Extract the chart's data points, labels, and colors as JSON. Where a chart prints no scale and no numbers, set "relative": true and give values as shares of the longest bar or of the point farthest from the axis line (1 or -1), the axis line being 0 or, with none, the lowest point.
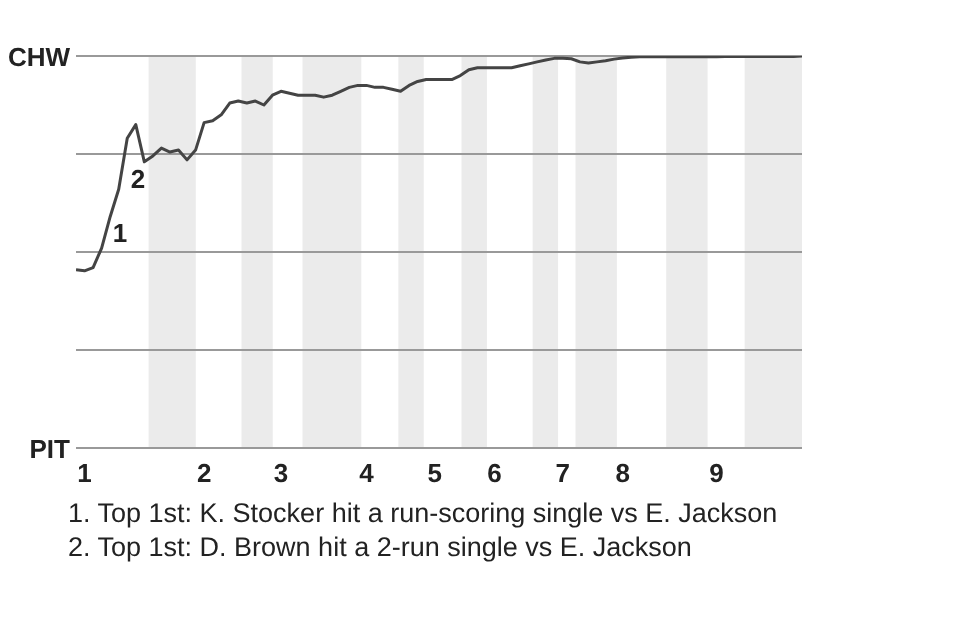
{
  "chart_data": {
    "type": "line",
    "relative": true,
    "categories": [
      null,
      "1",
      null,
      null,
      null,
      null,
      null,
      null,
      null,
      null,
      null,
      null,
      null,
      null,
      null,
      "2",
      null,
      null,
      null,
      null,
      null,
      null,
      null,
      null,
      "3",
      null,
      null,
      null,
      null,
      null,
      null,
      null,
      null,
      null,
      "4",
      null,
      null,
      null,
      null,
      null,
      null,
      null,
      "5",
      null,
      null,
      null,
      null,
      null,
      null,
      "6",
      null,
      null,
      null,
      null,
      null,
      null,
      null,
      "7",
      null,
      null,
      null,
      null,
      null,
      null,
      "8",
      null,
      null,
      null,
      null,
      null,
      null,
      null,
      null,
      null,
      null,
      "9",
      null,
      null,
      null,
      null,
      null,
      null,
      null,
      null,
      null,
      null
    ],
    "marker": "none",
    "line_style": "solid",
    "series": [
      {
        "color": "#444444",
        "values": [
          0.455,
          0.452,
          0.46,
          0.51,
          0.59,
          0.66,
          0.79,
          0.825,
          0.73,
          0.745,
          0.765,
          0.755,
          0.76,
          0.735,
          0.76,
          0.83,
          0.835,
          0.85,
          0.88,
          0.885,
          0.88,
          0.885,
          0.875,
          0.9,
          0.91,
          0.905,
          0.9,
          0.9,
          0.9,
          0.895,
          0.9,
          0.91,
          0.92,
          0.925,
          0.925,
          0.92,
          0.92,
          0.915,
          0.91,
          0.925,
          0.935,
          0.94,
          0.94,
          0.94,
          0.94,
          0.95,
          0.965,
          0.97,
          0.97,
          0.97,
          0.97,
          0.97,
          0.975,
          0.98,
          0.985,
          0.99,
          0.994,
          0.994,
          0.993,
          0.985,
          0.982,
          0.985,
          0.988,
          0.992,
          0.995,
          0.997,
          0.998,
          0.998,
          0.998,
          0.998,
          0.998,
          0.998,
          0.998,
          0.998,
          0.998,
          0.998,
          0.999,
          0.999,
          0.999,
          0.999,
          0.999,
          0.999,
          0.999,
          0.999,
          0.999,
          1
        ]
      }
    ],
    "ref_lines": [
      {
        "axis": "y",
        "value": 1,
        "label": "CHW",
        "color": "#999999"
      },
      {
        "axis": "y",
        "value": 0.75,
        "label": null,
        "color": "#999999"
      },
      {
        "axis": "y",
        "value": 0.5,
        "label": null,
        "color": "#999999"
      },
      {
        "axis": "y",
        "value": 0.25,
        "label": null,
        "color": "#999999"
      },
      {
        "axis": "y",
        "value": 0,
        "label": "PIT",
        "color": "#999999"
      }
    ],
    "annotations": [
      "1",
      "2",
      "1. Top 1st: K. Stocker hit a run-scoring single vs E. Jackson",
      "2. Top 1st: D. Brown hit a 2-run single vs E. Jackson"
    ]
  }
}
